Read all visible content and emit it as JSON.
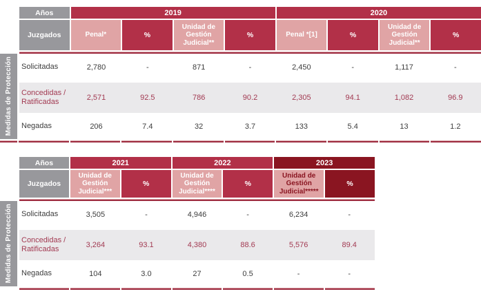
{
  "colors": {
    "crimson": "#b23048",
    "pink": "#e0a4a5",
    "maroon": "#8a1521",
    "header_gray": "#98989c",
    "row_highlight_bg": "#eae9eb",
    "highlight_text": "#a23a52",
    "rule_dark": "#9e2c40",
    "rule_light": "#d9a3a8",
    "body_text": "#3c3c3c"
  },
  "sidebar_label": "Medidas de Protección",
  "table1": {
    "corner": {
      "years_label": "Años",
      "rows_label": "Juzgados"
    },
    "year_groups": [
      {
        "label": "2019"
      },
      {
        "label": "2020"
      }
    ],
    "columns": [
      {
        "label": "Penal*"
      },
      {
        "label": "%"
      },
      {
        "label": "Unidad de Gestión Judicial**"
      },
      {
        "label": "%"
      },
      {
        "label": "Penal *[1]"
      },
      {
        "label": "%"
      },
      {
        "label": "Unidad de Gestión Judicial**"
      },
      {
        "label": "%"
      }
    ],
    "rows": [
      {
        "label": "Solicitadas",
        "values": [
          "2,780",
          "-",
          "871",
          "-",
          "2,450",
          "-",
          "1,117",
          "-"
        ]
      },
      {
        "label": "Concedidas / Ratificadas",
        "values": [
          "2,571",
          "92.5",
          "786",
          "90.2",
          "2,305",
          "94.1",
          "1,082",
          "96.9"
        ]
      },
      {
        "label": "Negadas",
        "values": [
          "206",
          "7.4",
          "32",
          "3.7",
          "133",
          "5.4",
          "13",
          "1.2"
        ]
      }
    ]
  },
  "table2": {
    "corner": {
      "years_label": "Años",
      "rows_label": "Juzgados"
    },
    "year_groups": [
      {
        "label": "2021"
      },
      {
        "label": "2022"
      },
      {
        "label": "2023"
      }
    ],
    "columns": [
      {
        "label": "Unidad de Gestión Judicial***"
      },
      {
        "label": "%"
      },
      {
        "label": "Unidad de Gestión Judicial****"
      },
      {
        "label": "%"
      },
      {
        "label": "Unidad de Gestión Judicial*****"
      },
      {
        "label": "%"
      }
    ],
    "rows": [
      {
        "label": "Solicitadas",
        "values": [
          "3,505",
          "-",
          "4,946",
          "-",
          "6,234",
          "-"
        ]
      },
      {
        "label": "Concedidas / Ratificadas",
        "values": [
          "3,264",
          "93.1",
          "4,380",
          "88.6",
          "5,576",
          "89.4"
        ]
      },
      {
        "label": "Negadas",
        "values": [
          "104",
          "3.0",
          "27",
          "0.5",
          "-",
          "-"
        ]
      }
    ]
  }
}
